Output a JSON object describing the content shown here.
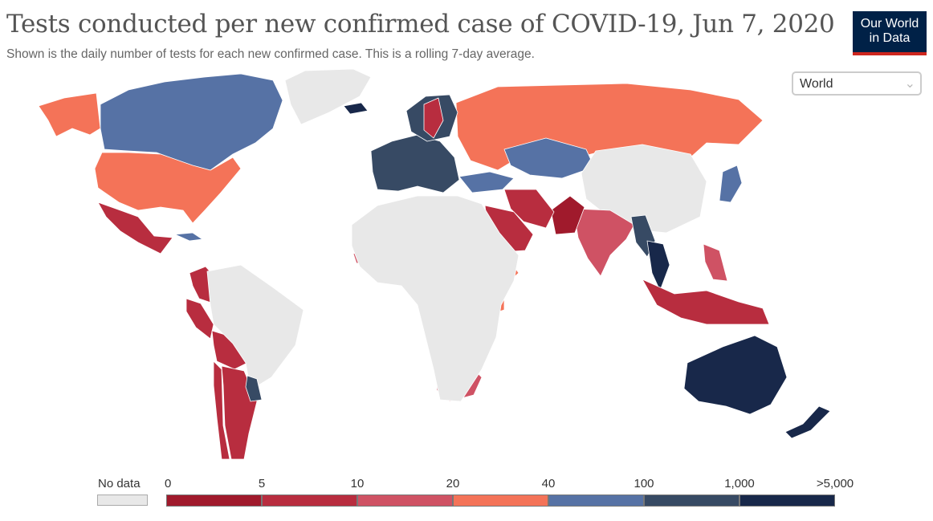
{
  "title": "Tests conducted per new confirmed case of COVID-19, Jun 7, 2020",
  "subtitle": "Shown is the daily number of tests for each new confirmed case. This is a rolling 7-day average.",
  "logo": {
    "line1": "Our World",
    "line2": "in Data",
    "bg": "#002147",
    "accent": "#ce261e"
  },
  "region_selector": {
    "selected": "World",
    "icon": "chevron-down-icon"
  },
  "legend": {
    "no_data_label": "No data",
    "no_data_color": "#e8e8e8",
    "ticks": [
      "0",
      "5",
      "10",
      "20",
      "40",
      "100",
      "1,000",
      ">5,000"
    ],
    "bin_colors": [
      "#a01a2c",
      "#b82d3f",
      "#cf5264",
      "#f47358",
      "#5672a5",
      "#374a64",
      "#18284a"
    ]
  },
  "map_data": {
    "type": "choropleth",
    "date": "Jun 7, 2020",
    "regions": [
      {
        "name": "Canada",
        "bin": 4
      },
      {
        "name": "United States",
        "bin": 3
      },
      {
        "name": "Alaska",
        "bin": 3
      },
      {
        "name": "Greenland",
        "bin": -1
      },
      {
        "name": "Mexico",
        "bin": 1
      },
      {
        "name": "Colombia",
        "bin": 1
      },
      {
        "name": "Peru",
        "bin": 1
      },
      {
        "name": "Bolivia",
        "bin": 1
      },
      {
        "name": "Brazil",
        "bin": -1
      },
      {
        "name": "Chile",
        "bin": 1
      },
      {
        "name": "Argentina",
        "bin": 1
      },
      {
        "name": "Uruguay",
        "bin": 5
      },
      {
        "name": "Russia",
        "bin": 3
      },
      {
        "name": "Kazakhstan",
        "bin": 4
      },
      {
        "name": "China",
        "bin": -1
      },
      {
        "name": "India",
        "bin": 2
      },
      {
        "name": "Pakistan",
        "bin": 0
      },
      {
        "name": "Iran",
        "bin": 1
      },
      {
        "name": "Saudi Arabia",
        "bin": 1
      },
      {
        "name": "Turkey",
        "bin": 4
      },
      {
        "name": "Western Europe",
        "bin": 5
      },
      {
        "name": "Scandinavia",
        "bin": 5
      },
      {
        "name": "Sweden",
        "bin": 1
      },
      {
        "name": "Myanmar",
        "bin": 5
      },
      {
        "name": "Thailand",
        "bin": 6
      },
      {
        "name": "Japan",
        "bin": 4
      },
      {
        "name": "Indonesia",
        "bin": 1
      },
      {
        "name": "Philippines",
        "bin": 2
      },
      {
        "name": "Australia",
        "bin": 6
      },
      {
        "name": "New Zealand",
        "bin": 6
      },
      {
        "name": "Nigeria",
        "bin": 1
      },
      {
        "name": "Ethiopia",
        "bin": 3
      },
      {
        "name": "Kenya",
        "bin": 3
      },
      {
        "name": "Senegal",
        "bin": 2
      },
      {
        "name": "South Africa",
        "bin": 2
      },
      {
        "name": "Zimbabwe",
        "bin": 3
      },
      {
        "name": "Africa (other)",
        "bin": -1
      },
      {
        "name": "Iceland",
        "bin": 6
      },
      {
        "name": "Cuba",
        "bin": 4
      }
    ]
  }
}
